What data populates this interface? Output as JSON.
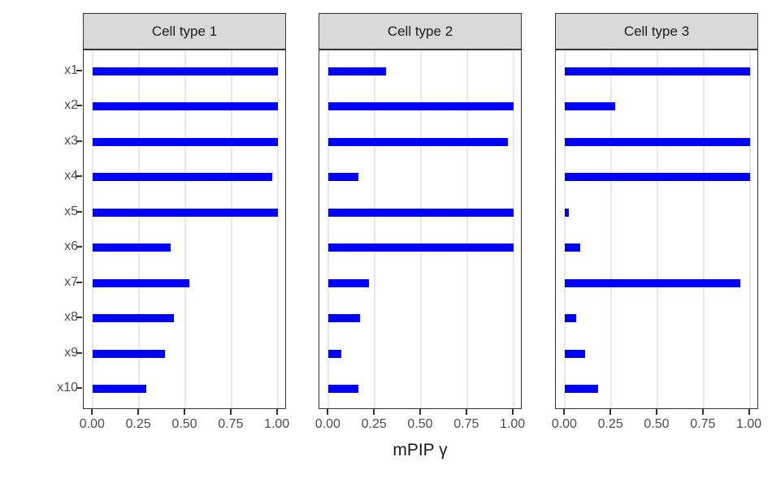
{
  "chart_data": {
    "type": "bar",
    "orientation": "horizontal",
    "title": "",
    "xlabel": "mPIP γ",
    "ylabel": "",
    "xlim": [
      0,
      1
    ],
    "x_ticks": [
      0,
      0.25,
      0.5,
      0.75,
      1
    ],
    "x_tick_labels": [
      "0.00",
      "0.25",
      "0.50",
      "0.75",
      "1.00"
    ],
    "categories": [
      "x1",
      "x2",
      "x3",
      "x4",
      "x5",
      "x6",
      "x7",
      "x8",
      "x9",
      "x10"
    ],
    "facets": [
      {
        "name": "Cell type 1",
        "values": [
          1.0,
          1.0,
          1.0,
          0.97,
          1.0,
          0.42,
          0.52,
          0.44,
          0.39,
          0.29
        ]
      },
      {
        "name": "Cell type 2",
        "values": [
          0.31,
          1.0,
          0.97,
          0.16,
          1.0,
          1.0,
          0.22,
          0.17,
          0.07,
          0.16
        ]
      },
      {
        "name": "Cell type 3",
        "values": [
          1.0,
          0.27,
          1.0,
          1.0,
          0.02,
          0.08,
          0.95,
          0.06,
          0.11,
          0.18
        ]
      }
    ],
    "grid": "vertical-major-only",
    "legend": "none"
  },
  "style": {
    "bar_color": "#0000FF",
    "strip_bg": "#D9D9D9",
    "panel_border": "#333333",
    "grid_color": "#E8E8E8",
    "tick_color": "#333333",
    "axis_text_color": "#4D4D4D",
    "strip_text_color": "#1A1A1A",
    "title_text_color": "#1A1A1A",
    "background": "#FFFFFF"
  }
}
